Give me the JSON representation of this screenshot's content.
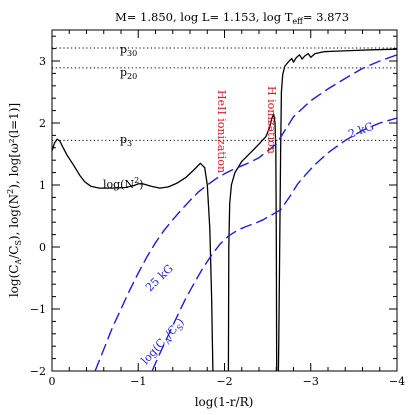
{
  "chart_data": {
    "type": "line",
    "title": {
      "m_label": "M=",
      "m_value": "1.850",
      "l_label": "log L=",
      "l_value": "1.153",
      "teff_label": "log T",
      "teff_sub": "eff",
      "teff_value": "3.873"
    },
    "xlabel": "log(1-r/R)",
    "ylabel": "log(C_A/C_S), log(N²), log[ω²(l=1)]",
    "ylabel_parts": {
      "pre": "log(C",
      "sub_a": "A",
      "mid1": "/C",
      "sub_s": "S",
      "mid2": "), log(N",
      "sup": "2",
      "post": "), log[ω²(l=1)]"
    },
    "xlim": [
      0,
      -4
    ],
    "ylim": [
      -2,
      3.5
    ],
    "x_ticks": [
      0,
      -1,
      -2,
      -3,
      -4
    ],
    "x_tick_labels": [
      "0",
      "−1",
      "−2",
      "−3",
      "−4"
    ],
    "y_ticks": [
      -2,
      -1,
      0,
      1,
      2,
      3
    ],
    "y_tick_labels": [
      "−2",
      "−1",
      "0",
      "1",
      "2",
      "3"
    ],
    "hlines": [
      {
        "name": "p30",
        "label": "p",
        "sub": "30",
        "y": 3.21
      },
      {
        "name": "p20",
        "label": "p",
        "sub": "20",
        "y": 2.89
      },
      {
        "name": "p3",
        "label": "p",
        "sub": "3",
        "y": 1.72
      }
    ],
    "series": [
      {
        "name": "log(N²)",
        "color": "#000000",
        "style": "solid",
        "points": [
          [
            0,
            1.55
          ],
          [
            -0.03,
            1.68
          ],
          [
            -0.06,
            1.74
          ],
          [
            -0.09,
            1.71
          ],
          [
            -0.13,
            1.6
          ],
          [
            -0.18,
            1.47
          ],
          [
            -0.25,
            1.32
          ],
          [
            -0.32,
            1.16
          ],
          [
            -0.38,
            1.05
          ],
          [
            -0.45,
            0.98
          ],
          [
            -0.55,
            0.95
          ],
          [
            -0.7,
            0.95
          ],
          [
            -0.85,
            0.96
          ],
          [
            -0.95,
            0.99
          ],
          [
            -1.0,
            1.02
          ],
          [
            -1.05,
            1.02
          ],
          [
            -1.15,
            0.98
          ],
          [
            -1.25,
            0.95
          ],
          [
            -1.35,
            0.97
          ],
          [
            -1.45,
            1.03
          ],
          [
            -1.55,
            1.12
          ],
          [
            -1.65,
            1.25
          ],
          [
            -1.72,
            1.35
          ],
          [
            -1.77,
            1.28
          ],
          [
            -1.8,
            1.0
          ],
          [
            -1.83,
            0.3
          ],
          [
            -1.85,
            -0.8
          ],
          [
            -1.865,
            -2.0
          ]
        ]
      },
      {
        "name": "log(N²) inner branch",
        "color": "#000000",
        "style": "solid",
        "points": [
          [
            -2.045,
            -2.0
          ],
          [
            -2.05,
            0.0
          ],
          [
            -2.06,
            0.7
          ],
          [
            -2.08,
            1.0
          ],
          [
            -2.12,
            1.2
          ],
          [
            -2.2,
            1.38
          ],
          [
            -2.3,
            1.52
          ],
          [
            -2.4,
            1.66
          ],
          [
            -2.48,
            1.78
          ],
          [
            -2.52,
            1.92
          ],
          [
            -2.55,
            2.08
          ],
          [
            -2.57,
            2.14
          ],
          [
            -2.585,
            2.0
          ],
          [
            -2.595,
            1.6
          ],
          [
            -2.6,
            0.2
          ],
          [
            -2.605,
            -2.0
          ]
        ]
      },
      {
        "name": "log(N²) outer branch",
        "color": "#000000",
        "style": "solid",
        "points": [
          [
            -2.625,
            -2.0
          ],
          [
            -2.63,
            -1.5
          ],
          [
            -2.64,
            0.0
          ],
          [
            -2.65,
            1.5
          ],
          [
            -2.66,
            2.5
          ],
          [
            -2.675,
            2.78
          ],
          [
            -2.7,
            2.92
          ],
          [
            -2.75,
            3.0
          ],
          [
            -2.78,
            3.04
          ],
          [
            -2.8,
            2.98
          ],
          [
            -2.83,
            3.05
          ],
          [
            -2.87,
            3.1
          ],
          [
            -2.9,
            3.03
          ],
          [
            -2.93,
            3.08
          ],
          [
            -2.97,
            3.12
          ],
          [
            -3.0,
            3.06
          ],
          [
            -3.05,
            3.12
          ],
          [
            -3.15,
            3.15
          ],
          [
            -3.3,
            3.16
          ],
          [
            -3.5,
            3.17
          ],
          [
            -3.7,
            3.18
          ],
          [
            -4.0,
            3.19
          ]
        ]
      },
      {
        "name": "25 kG",
        "color": "#1d1dd6",
        "style": "dashed",
        "points": [
          [
            -0.5,
            -2.0
          ],
          [
            -0.6,
            -1.65
          ],
          [
            -0.7,
            -1.3
          ],
          [
            -0.8,
            -1.0
          ],
          [
            -0.9,
            -0.7
          ],
          [
            -1.0,
            -0.42
          ],
          [
            -1.1,
            -0.16
          ],
          [
            -1.2,
            0.07
          ],
          [
            -1.3,
            0.27
          ],
          [
            -1.4,
            0.44
          ],
          [
            -1.5,
            0.6
          ],
          [
            -1.6,
            0.75
          ],
          [
            -1.7,
            0.89
          ],
          [
            -1.8,
            1.0
          ],
          [
            -1.9,
            1.1
          ],
          [
            -2.0,
            1.18
          ],
          [
            -2.1,
            1.25
          ],
          [
            -2.2,
            1.31
          ],
          [
            -2.3,
            1.37
          ],
          [
            -2.4,
            1.44
          ],
          [
            -2.5,
            1.55
          ],
          [
            -2.6,
            1.66
          ],
          [
            -2.7,
            1.88
          ],
          [
            -2.8,
            2.1
          ],
          [
            -2.9,
            2.23
          ],
          [
            -3.0,
            2.36
          ],
          [
            -3.2,
            2.55
          ],
          [
            -3.4,
            2.72
          ],
          [
            -3.6,
            2.88
          ],
          [
            -3.8,
            3.0
          ],
          [
            -4.0,
            3.1
          ]
        ]
      },
      {
        "name": "2 kG",
        "color": "#1d1dd6",
        "style": "dashed",
        "points": [
          [
            -1.16,
            -2.0
          ],
          [
            -1.25,
            -1.72
          ],
          [
            -1.35,
            -1.42
          ],
          [
            -1.45,
            -1.12
          ],
          [
            -1.55,
            -0.83
          ],
          [
            -1.65,
            -0.58
          ],
          [
            -1.75,
            -0.34
          ],
          [
            -1.85,
            -0.13
          ],
          [
            -1.95,
            0.05
          ],
          [
            -2.05,
            0.18
          ],
          [
            -2.15,
            0.27
          ],
          [
            -2.25,
            0.33
          ],
          [
            -2.35,
            0.38
          ],
          [
            -2.45,
            0.44
          ],
          [
            -2.55,
            0.52
          ],
          [
            -2.65,
            0.6
          ],
          [
            -2.75,
            0.8
          ],
          [
            -2.85,
            1.02
          ],
          [
            -2.95,
            1.18
          ],
          [
            -3.05,
            1.33
          ],
          [
            -3.2,
            1.52
          ],
          [
            -3.4,
            1.72
          ],
          [
            -3.6,
            1.88
          ],
          [
            -3.8,
            2.0
          ],
          [
            -4.0,
            2.08
          ]
        ]
      }
    ],
    "annotations": {
      "n2_label": {
        "pre": "log(N",
        "sup": "2",
        "post": ")"
      },
      "kg25": "25 kG",
      "kg2": "2 kG",
      "ca_cs": {
        "pre": "log(C",
        "sub_a": "A",
        "mid": "/C",
        "sub_s": "S",
        "post": ")"
      },
      "he_ion": "HeII ionization",
      "h_ion": "H ionization"
    }
  }
}
